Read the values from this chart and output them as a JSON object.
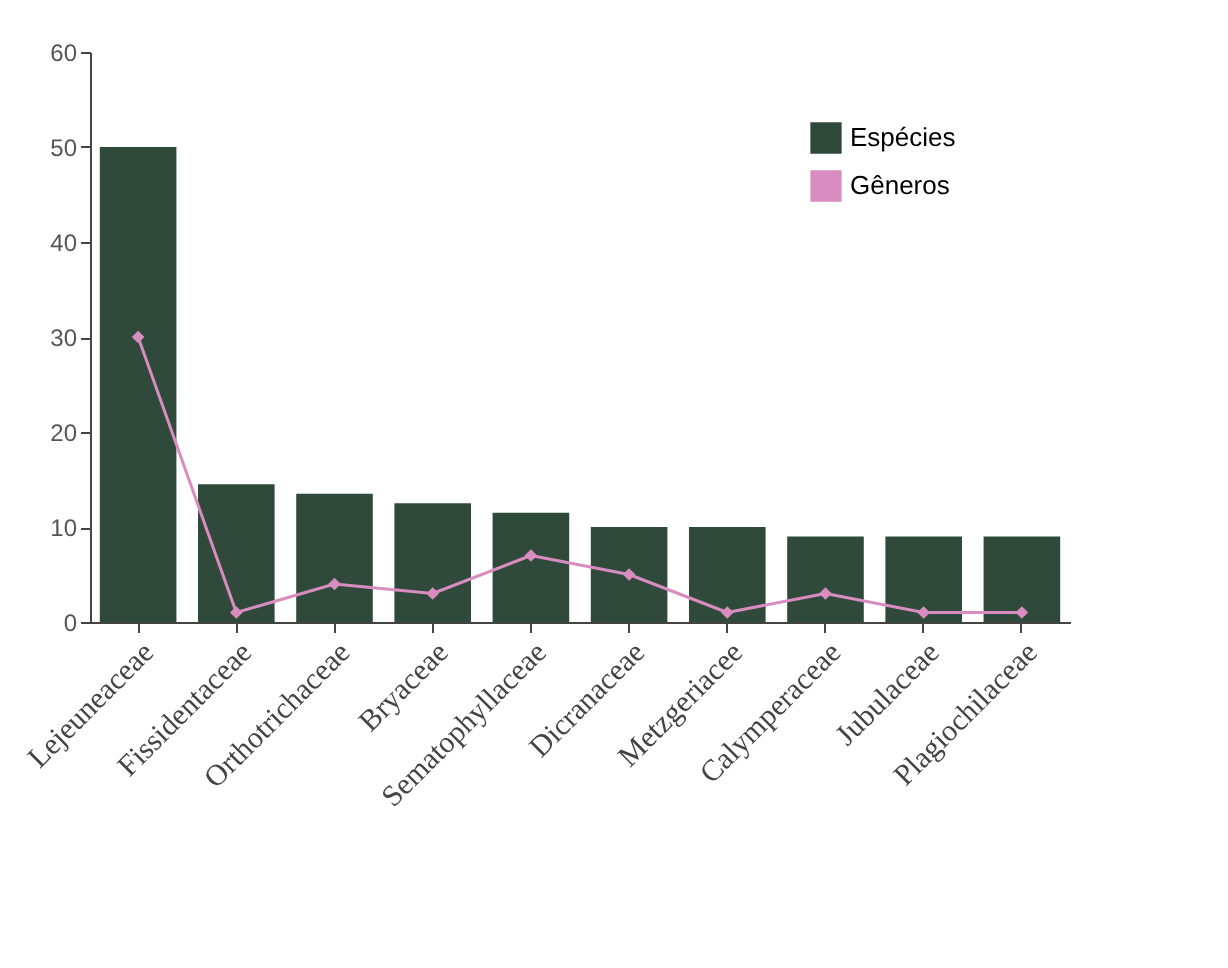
{
  "chart_data": {
    "type": "bar",
    "categories": [
      "Lejeuneaceae",
      "Fissidentaceae",
      "Orthotrichaceae",
      "Bryaceae",
      "Sematophyllaceae",
      "Dicranaceae",
      "Metzgeriacee",
      "Calymperaceae",
      "Jubulaceae",
      "Plagiochilaceae"
    ],
    "series": [
      {
        "name": "Espécies",
        "color": "#2f4a3a",
        "values": [
          50,
          14.5,
          13.5,
          12.5,
          11.5,
          10,
          10,
          9,
          9,
          9
        ]
      },
      {
        "name": "Gêneros",
        "type": "line",
        "color": "#d98cc0",
        "values": [
          30,
          1,
          4,
          3,
          7,
          5,
          1,
          3,
          1,
          1
        ]
      }
    ],
    "ylim": [
      0,
      60
    ],
    "yticks": [
      0,
      10,
      20,
      30,
      40,
      50,
      60
    ],
    "grid": false,
    "legend": "top right",
    "marker": "diamond",
    "line_style": "solid"
  }
}
